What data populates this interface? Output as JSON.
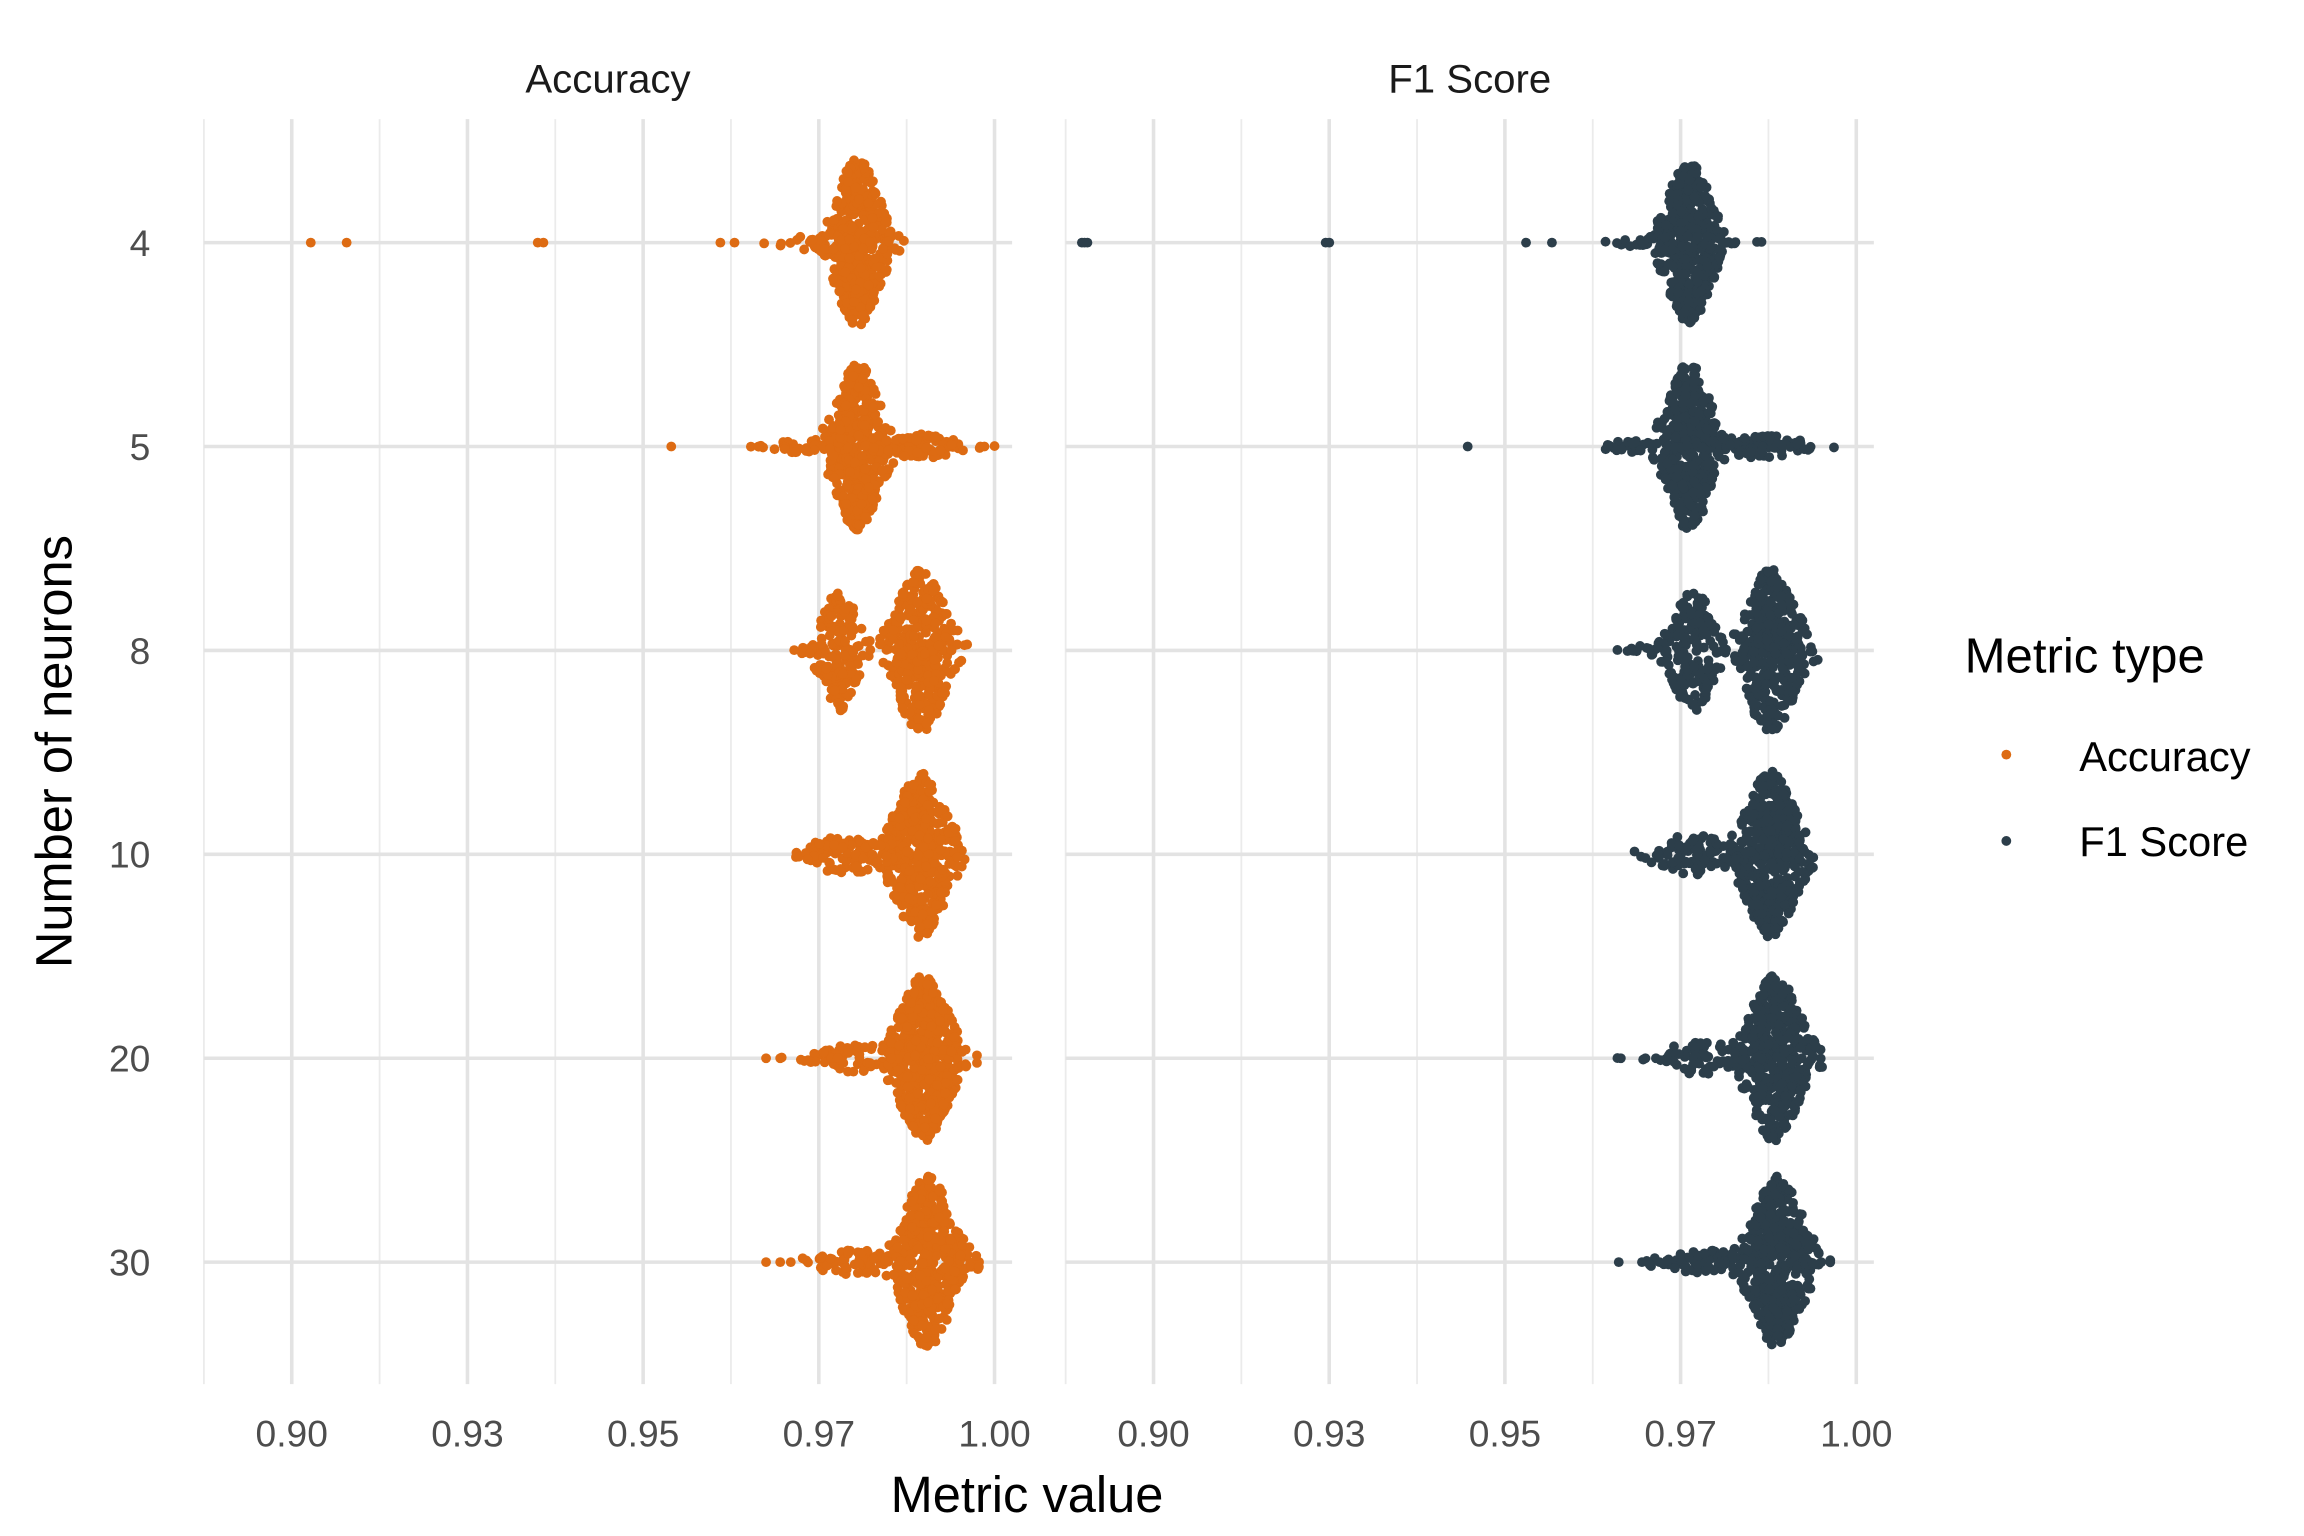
{
  "chart_data": {
    "type": "scatter",
    "subtype": "beeswarm",
    "xlabel": "Metric value",
    "ylabel": "Number of neurons",
    "categories": [
      "4",
      "5",
      "8",
      "10",
      "20",
      "30"
    ],
    "xlim": [
      0.8875,
      1.0025
    ],
    "x_ticks": [
      0.9,
      0.925,
      0.95,
      0.975,
      1.0
    ],
    "x_tick_labels": [
      "0.90",
      "0.93",
      "0.95",
      "0.97",
      "1.00"
    ],
    "grid": true,
    "legend": {
      "title": "Metric type",
      "placement": "right",
      "entries": [
        {
          "label": "Accuracy",
          "color": "#DD6B13"
        },
        {
          "label": "F1 Score",
          "color": "#2C3E4A"
        }
      ]
    },
    "panels": [
      {
        "title": "Accuracy",
        "color": "#DD6B13",
        "groups": [
          {
            "neurons": "4",
            "components": [
              {
                "mu": 0.9805,
                "sd": 0.0022,
                "n": 420,
                "spread": 0.41
              },
              {
                "mu": 0.976,
                "sd": 0.004,
                "n": 40,
                "spread": 0.04
              }
            ],
            "outliers": [
              0.9027,
              0.9078,
              0.935,
              0.9358,
              0.961,
              0.963
            ]
          },
          {
            "neurons": "5",
            "components": [
              {
                "mu": 0.9805,
                "sd": 0.0022,
                "n": 400,
                "spread": 0.41
              },
              {
                "mu": 0.9895,
                "sd": 0.0035,
                "n": 90,
                "spread": 0.06
              },
              {
                "mu": 0.972,
                "sd": 0.003,
                "n": 30,
                "spread": 0.03
              }
            ],
            "outliers": [
              0.954
            ]
          },
          {
            "neurons": "8",
            "components": [
              {
                "mu": 0.978,
                "sd": 0.0018,
                "n": 160,
                "spread": 0.3
              },
              {
                "mu": 0.9895,
                "sd": 0.0025,
                "n": 380,
                "spread": 0.4
              },
              {
                "mu": 0.9735,
                "sd": 0.001,
                "n": 10,
                "spread": 0.02
              }
            ],
            "outliers": []
          },
          {
            "neurons": "10",
            "components": [
              {
                "mu": 0.9895,
                "sd": 0.0025,
                "n": 480,
                "spread": 0.41
              },
              {
                "mu": 0.979,
                "sd": 0.0035,
                "n": 90,
                "spread": 0.1
              }
            ],
            "outliers": []
          },
          {
            "neurons": "20",
            "components": [
              {
                "mu": 0.99,
                "sd": 0.0025,
                "n": 480,
                "spread": 0.41
              },
              {
                "mu": 0.98,
                "sd": 0.004,
                "n": 60,
                "spread": 0.07
              }
            ],
            "outliers": [
              0.9675,
              0.9695
            ]
          },
          {
            "neurons": "30",
            "components": [
              {
                "mu": 0.9905,
                "sd": 0.0025,
                "n": 480,
                "spread": 0.42
              },
              {
                "mu": 0.98,
                "sd": 0.004,
                "n": 60,
                "spread": 0.06
              }
            ],
            "outliers": [
              0.9675,
              0.9695,
              0.971
            ]
          }
        ]
      },
      {
        "title": "F1 Score",
        "color": "#2C3E4A",
        "groups": [
          {
            "neurons": "4",
            "components": [
              {
                "mu": 0.9762,
                "sd": 0.0022,
                "n": 420,
                "spread": 0.4
              },
              {
                "mu": 0.974,
                "sd": 0.005,
                "n": 50,
                "spread": 0.04
              }
            ],
            "outliers": [
              0.8898,
              0.8902,
              0.8906,
              0.9245,
              0.925,
              0.953,
              0.9567
            ]
          },
          {
            "neurons": "5",
            "components": [
              {
                "mu": 0.9762,
                "sd": 0.0022,
                "n": 400,
                "spread": 0.41
              },
              {
                "mu": 0.986,
                "sd": 0.004,
                "n": 100,
                "spread": 0.06
              },
              {
                "mu": 0.968,
                "sd": 0.003,
                "n": 30,
                "spread": 0.03
              }
            ],
            "outliers": [
              0.9447
            ]
          },
          {
            "neurons": "8",
            "components": [
              {
                "mu": 0.9768,
                "sd": 0.002,
                "n": 170,
                "spread": 0.3
              },
              {
                "mu": 0.9878,
                "sd": 0.0025,
                "n": 380,
                "spread": 0.4
              },
              {
                "mu": 0.9705,
                "sd": 0.0015,
                "n": 14,
                "spread": 0.03
              }
            ],
            "outliers": [
              0.968
            ]
          },
          {
            "neurons": "10",
            "components": [
              {
                "mu": 0.9878,
                "sd": 0.0025,
                "n": 480,
                "spread": 0.41
              },
              {
                "mu": 0.977,
                "sd": 0.0035,
                "n": 90,
                "spread": 0.1
              }
            ],
            "outliers": []
          },
          {
            "neurons": "20",
            "components": [
              {
                "mu": 0.9884,
                "sd": 0.0025,
                "n": 480,
                "spread": 0.41
              },
              {
                "mu": 0.978,
                "sd": 0.004,
                "n": 60,
                "spread": 0.08
              }
            ],
            "outliers": [
              0.9665,
              0.97,
              0.9715
            ]
          },
          {
            "neurons": "30",
            "components": [
              {
                "mu": 0.9888,
                "sd": 0.0025,
                "n": 480,
                "spread": 0.42
              },
              {
                "mu": 0.978,
                "sd": 0.004,
                "n": 60,
                "spread": 0.06
              }
            ],
            "outliers": [
              0.9662,
              0.9695,
              0.972
            ]
          }
        ]
      }
    ]
  }
}
